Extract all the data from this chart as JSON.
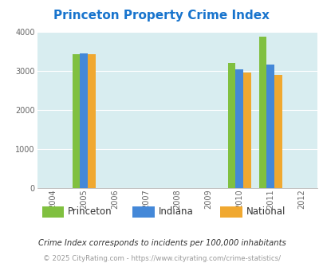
{
  "title": "Princeton Property Crime Index",
  "title_color": "#1874CD",
  "years": [
    2004,
    2005,
    2006,
    2007,
    2008,
    2009,
    2010,
    2011,
    2012
  ],
  "bar_years": [
    2005,
    2010,
    2011
  ],
  "princeton": [
    3420,
    3200,
    3870
  ],
  "indiana": [
    3450,
    3030,
    3150
  ],
  "national": [
    3420,
    2950,
    2900
  ],
  "colors": {
    "princeton": "#80c040",
    "indiana": "#4488d8",
    "national": "#f0a830"
  },
  "ylim": [
    0,
    4000
  ],
  "yticks": [
    0,
    1000,
    2000,
    3000,
    4000
  ],
  "bg_color": "#d8edf0",
  "legend_labels": [
    "Princeton",
    "Indiana",
    "National"
  ],
  "note1": "Crime Index corresponds to incidents per 100,000 inhabitants",
  "note2": "© 2025 CityRating.com - https://www.cityrating.com/crime-statistics/",
  "bar_width": 0.25,
  "xlim": [
    2003.5,
    2012.5
  ]
}
